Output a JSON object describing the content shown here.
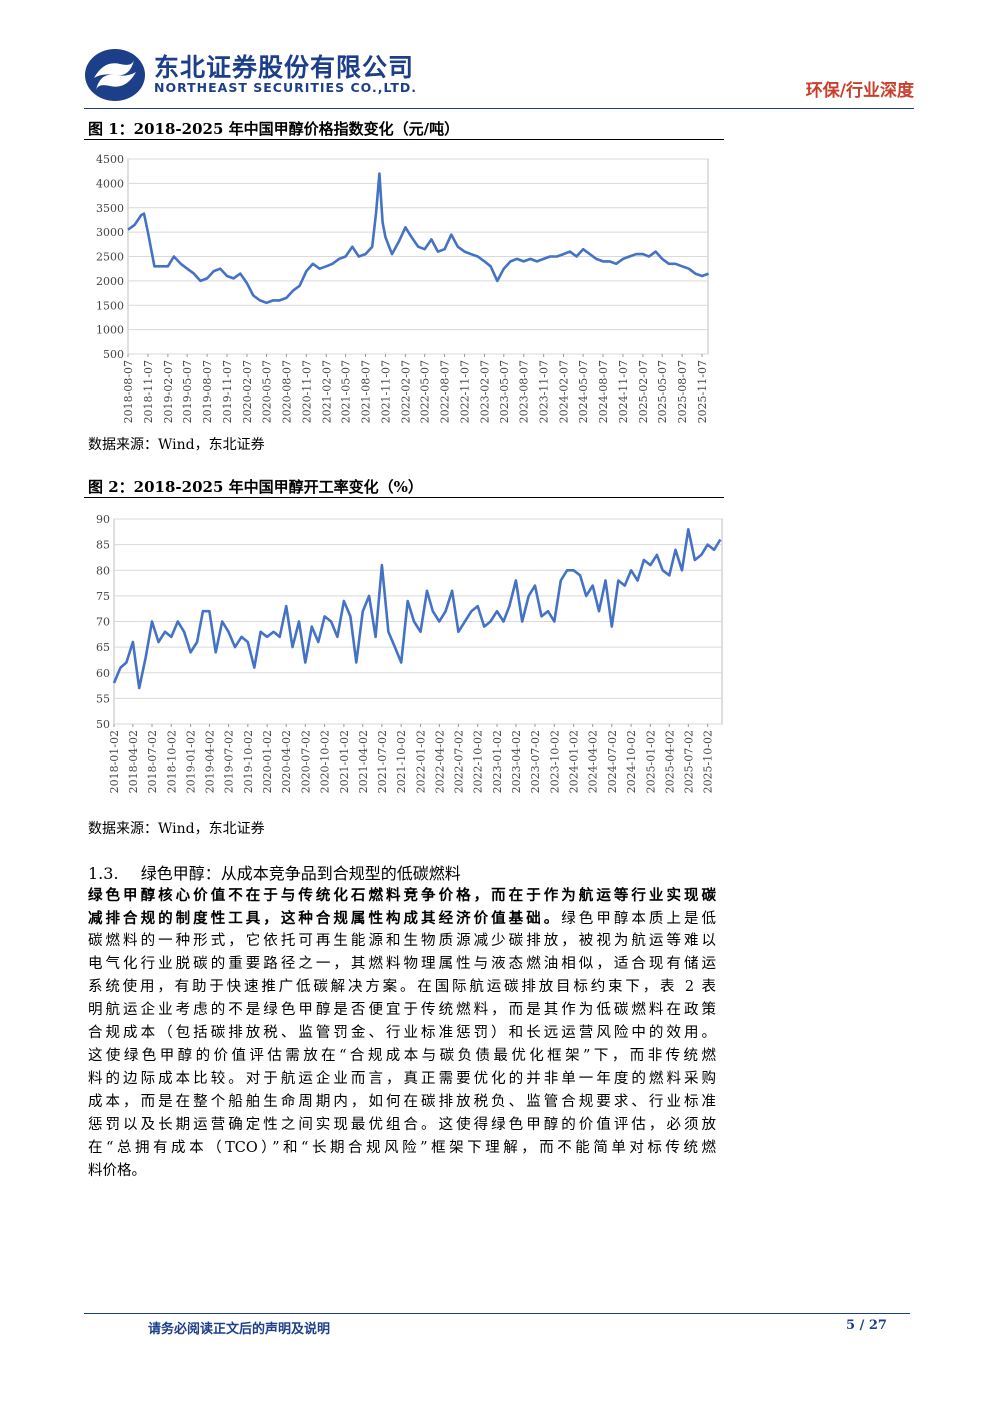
{
  "header": {
    "company_cn": "东北证券股份有限公司",
    "company_en": "NORTHEAST SECURITIES CO.,LTD.",
    "tag": "环保/行业深度",
    "brand_color": "#1d3f8a",
    "tag_color": "#c8402c"
  },
  "figure1": {
    "title": "图 1：2018-2025 年中国甲醇价格指数变化（元/吨）",
    "source": "数据来源：Wind，东北证券"
  },
  "figure2": {
    "title": "图 2：2018-2025 年中国甲醇开工率变化（%）",
    "source": "数据来源：Wind，东北证券"
  },
  "chart_data": [
    {
      "type": "line",
      "title": "2018-2025 年中国甲醇价格指数变化（元/吨）",
      "ylim": [
        500,
        4500
      ],
      "yticks": [
        500,
        1000,
        1500,
        2000,
        2500,
        3000,
        3500,
        4000,
        4500
      ],
      "x_tick_labels": [
        "2018-08-07",
        "2018-11-07",
        "2019-02-07",
        "2019-05-07",
        "2019-08-07",
        "2019-11-07",
        "2020-02-07",
        "2020-05-07",
        "2020-08-07",
        "2020-11-07",
        "2021-02-07",
        "2021-05-07",
        "2021-08-07",
        "2021-11-07",
        "2022-02-07",
        "2022-05-07",
        "2022-08-07",
        "2022-11-07",
        "2023-02-07",
        "2023-05-07",
        "2023-08-07",
        "2023-11-07",
        "2024-02-07",
        "2024-05-07",
        "2024-08-07",
        "2024-11-07",
        "2025-02-07",
        "2025-05-07",
        "2025-08-07",
        "2025-11-07"
      ],
      "grid": "horizontal",
      "color": "#4472c4",
      "series": [
        {
          "x": [
            "2018-08-07",
            "2018-09-07",
            "2018-10-07",
            "2018-10-20",
            "2018-11-07",
            "2018-12-07",
            "2019-01-07",
            "2019-02-07",
            "2019-03-07",
            "2019-04-07",
            "2019-05-07",
            "2019-06-07",
            "2019-07-07",
            "2019-08-07",
            "2019-09-07",
            "2019-10-07",
            "2019-11-07",
            "2019-12-07",
            "2020-01-07",
            "2020-02-07",
            "2020-03-07",
            "2020-04-07",
            "2020-05-07",
            "2020-06-07",
            "2020-07-07",
            "2020-08-07",
            "2020-09-07",
            "2020-10-07",
            "2020-11-07",
            "2020-12-07",
            "2021-01-07",
            "2021-02-07",
            "2021-03-07",
            "2021-04-07",
            "2021-05-07",
            "2021-06-07",
            "2021-07-07",
            "2021-08-07",
            "2021-09-07",
            "2021-09-25",
            "2021-10-10",
            "2021-10-25",
            "2021-11-07",
            "2021-12-07",
            "2022-01-07",
            "2022-02-07",
            "2022-03-07",
            "2022-04-07",
            "2022-05-07",
            "2022-06-07",
            "2022-07-07",
            "2022-08-07",
            "2022-09-07",
            "2022-10-07",
            "2022-11-07",
            "2022-12-07",
            "2023-01-07",
            "2023-02-07",
            "2023-03-07",
            "2023-04-07",
            "2023-05-07",
            "2023-06-07",
            "2023-07-07",
            "2023-08-07",
            "2023-09-07",
            "2023-10-07",
            "2023-11-07",
            "2023-12-07",
            "2024-01-07",
            "2024-02-07",
            "2024-03-07",
            "2024-04-07",
            "2024-05-07",
            "2024-06-07",
            "2024-07-07",
            "2024-08-07",
            "2024-09-07",
            "2024-10-07",
            "2024-11-07",
            "2024-12-07",
            "2025-01-07",
            "2025-02-07",
            "2025-03-07",
            "2025-04-07",
            "2025-05-07",
            "2025-06-07",
            "2025-07-07",
            "2025-08-07",
            "2025-09-07",
            "2025-10-07",
            "2025-11-07",
            "2025-12-07"
          ],
          "values": [
            3050,
            3150,
            3350,
            3380,
            3000,
            2300,
            2300,
            2300,
            2500,
            2350,
            2250,
            2150,
            2000,
            2050,
            2200,
            2250,
            2100,
            2050,
            2150,
            1950,
            1700,
            1600,
            1550,
            1600,
            1600,
            1650,
            1800,
            1900,
            2200,
            2350,
            2250,
            2300,
            2350,
            2450,
            2500,
            2700,
            2500,
            2550,
            2700,
            3400,
            4200,
            3200,
            2900,
            2550,
            2800,
            3100,
            2900,
            2700,
            2650,
            2850,
            2600,
            2650,
            2950,
            2700,
            2600,
            2550,
            2500,
            2400,
            2300,
            2000,
            2250,
            2400,
            2450,
            2400,
            2450,
            2400,
            2450,
            2500,
            2500,
            2550,
            2600,
            2500,
            2650,
            2550,
            2450,
            2400,
            2400,
            2350,
            2450,
            2500,
            2550,
            2550,
            2500,
            2600,
            2450,
            2350,
            2350,
            2300,
            2250,
            2150,
            2100,
            2150
          ]
        }
      ]
    },
    {
      "type": "line",
      "title": "2018-2025 年中国甲醇开工率变化（%）",
      "ylim": [
        50,
        90
      ],
      "yticks": [
        50,
        55,
        60,
        65,
        70,
        75,
        80,
        85,
        90
      ],
      "x_tick_labels": [
        "2018-01-02",
        "2018-04-02",
        "2018-07-02",
        "2018-10-02",
        "2019-01-02",
        "2019-04-02",
        "2019-07-02",
        "2019-10-02",
        "2020-01-02",
        "2020-04-02",
        "2020-07-02",
        "2020-10-02",
        "2021-01-02",
        "2021-04-02",
        "2021-07-02",
        "2021-10-02",
        "2022-01-02",
        "2022-04-02",
        "2022-07-02",
        "2022-10-02",
        "2023-01-02",
        "2023-04-02",
        "2023-07-02",
        "2023-10-02",
        "2024-01-02",
        "2024-04-02",
        "2024-07-02",
        "2024-10-02",
        "2025-01-02",
        "2025-04-02",
        "2025-07-02",
        "2025-10-02"
      ],
      "grid": "horizontal",
      "color": "#4472c4",
      "series": [
        {
          "x": [
            "2018-01-02",
            "2018-02-02",
            "2018-03-02",
            "2018-04-02",
            "2018-05-02",
            "2018-06-02",
            "2018-07-02",
            "2018-08-02",
            "2018-09-02",
            "2018-10-02",
            "2018-11-02",
            "2018-12-02",
            "2019-01-02",
            "2019-02-02",
            "2019-03-02",
            "2019-04-02",
            "2019-05-02",
            "2019-06-02",
            "2019-07-02",
            "2019-08-02",
            "2019-09-02",
            "2019-10-02",
            "2019-11-02",
            "2019-12-02",
            "2020-01-02",
            "2020-02-02",
            "2020-03-02",
            "2020-04-02",
            "2020-05-02",
            "2020-06-02",
            "2020-07-02",
            "2020-08-02",
            "2020-09-02",
            "2020-10-02",
            "2020-11-02",
            "2020-12-02",
            "2021-01-02",
            "2021-02-02",
            "2021-03-02",
            "2021-04-02",
            "2021-05-02",
            "2021-06-02",
            "2021-07-02",
            "2021-08-02",
            "2021-09-02",
            "2021-10-02",
            "2021-11-02",
            "2021-12-02",
            "2022-01-02",
            "2022-02-02",
            "2022-03-02",
            "2022-04-02",
            "2022-05-02",
            "2022-06-02",
            "2022-07-02",
            "2022-08-02",
            "2022-09-02",
            "2022-10-02",
            "2022-11-02",
            "2022-12-02",
            "2023-01-02",
            "2023-02-02",
            "2023-03-02",
            "2023-04-02",
            "2023-05-02",
            "2023-06-02",
            "2023-07-02",
            "2023-08-02",
            "2023-09-02",
            "2023-10-02",
            "2023-11-02",
            "2023-12-02",
            "2024-01-02",
            "2024-02-02",
            "2024-03-02",
            "2024-04-02",
            "2024-05-02",
            "2024-06-02",
            "2024-07-02",
            "2024-08-02",
            "2024-09-02",
            "2024-10-02",
            "2024-11-02",
            "2024-12-02",
            "2025-01-02",
            "2025-02-02",
            "2025-03-02",
            "2025-04-02",
            "2025-05-02",
            "2025-06-02",
            "2025-07-02",
            "2025-08-02",
            "2025-09-02",
            "2025-10-02",
            "2025-11-02",
            "2025-12-02"
          ],
          "values": [
            58,
            61,
            62,
            66,
            57,
            63,
            70,
            66,
            68,
            67,
            70,
            68,
            64,
            66,
            72,
            72,
            64,
            70,
            68,
            65,
            67,
            66,
            61,
            68,
            67,
            68,
            67,
            73,
            65,
            70,
            62,
            69,
            66,
            71,
            70,
            67,
            74,
            71,
            62,
            72,
            75,
            67,
            81,
            68,
            65,
            62,
            74,
            70,
            68,
            76,
            72,
            70,
            72,
            76,
            68,
            70,
            72,
            73,
            69,
            70,
            72,
            70,
            73,
            78,
            70,
            75,
            77,
            71,
            72,
            70,
            78,
            80,
            80,
            79,
            75,
            77,
            72,
            78,
            69,
            78,
            77,
            80,
            78,
            82,
            81,
            83,
            80,
            79,
            84,
            80,
            88,
            82,
            83,
            85,
            84,
            86
          ]
        }
      ]
    }
  ],
  "section": {
    "number": "1.3.",
    "title": "绿色甲醇：从成本竞争品到合规型的低碳燃料"
  },
  "body": {
    "lines": [
      {
        "bold": "绿色甲醇核心价值不在于与传统化石燃料竞争价格，而在于作为航运等行业实现碳",
        "text": ""
      },
      {
        "bold": "减排合规的制度性工具，这种合规属性构成其经济价值基础。",
        "text": "绿色甲醇本质上是低"
      },
      {
        "bold": "",
        "text": "碳燃料的一种形式，它依托可再生能源和生物质源减少碳排放，被视为航运等难以"
      },
      {
        "bold": "",
        "text": "电气化行业脱碳的重要路径之一，其燃料物理属性与液态燃油相似，适合现有储运"
      },
      {
        "bold": "",
        "text": "系统使用，有助于快速推广低碳解决方案。在国际航运碳排放目标约束下，表 2 表"
      },
      {
        "bold": "",
        "text": "明航运企业考虑的不是绿色甲醇是否便宜于传统燃料，而是其作为低碳燃料在政策"
      },
      {
        "bold": "",
        "text": "合规成本（包括碳排放税、监管罚金、行业标准惩罚）和长远运营风险中的效用。"
      },
      {
        "bold": "",
        "text": "这使绿色甲醇的价值评估需放在“合规成本与碳负债最优化框架”下，而非传统燃"
      },
      {
        "bold": "",
        "text": "料的边际成本比较。对于航运企业而言，真正需要优化的并非单一年度的燃料采购"
      },
      {
        "bold": "",
        "text": "成本，而是在整个船舶生命周期内，如何在碳排放税负、监管合规要求、行业标准"
      },
      {
        "bold": "",
        "text": "惩罚以及长期运营确定性之间实现最优组合。这使得绿色甲醇的价值评估，必须放"
      },
      {
        "bold": "",
        "text": "在“总拥有成本（TCO）”和“长期合规风险”框架下理解，而不能简单对标传统燃"
      },
      {
        "bold": "",
        "text": "料价格。"
      }
    ]
  },
  "footer": {
    "notice": "请务必阅读正文后的声明及说明",
    "page": "5 / 27"
  }
}
